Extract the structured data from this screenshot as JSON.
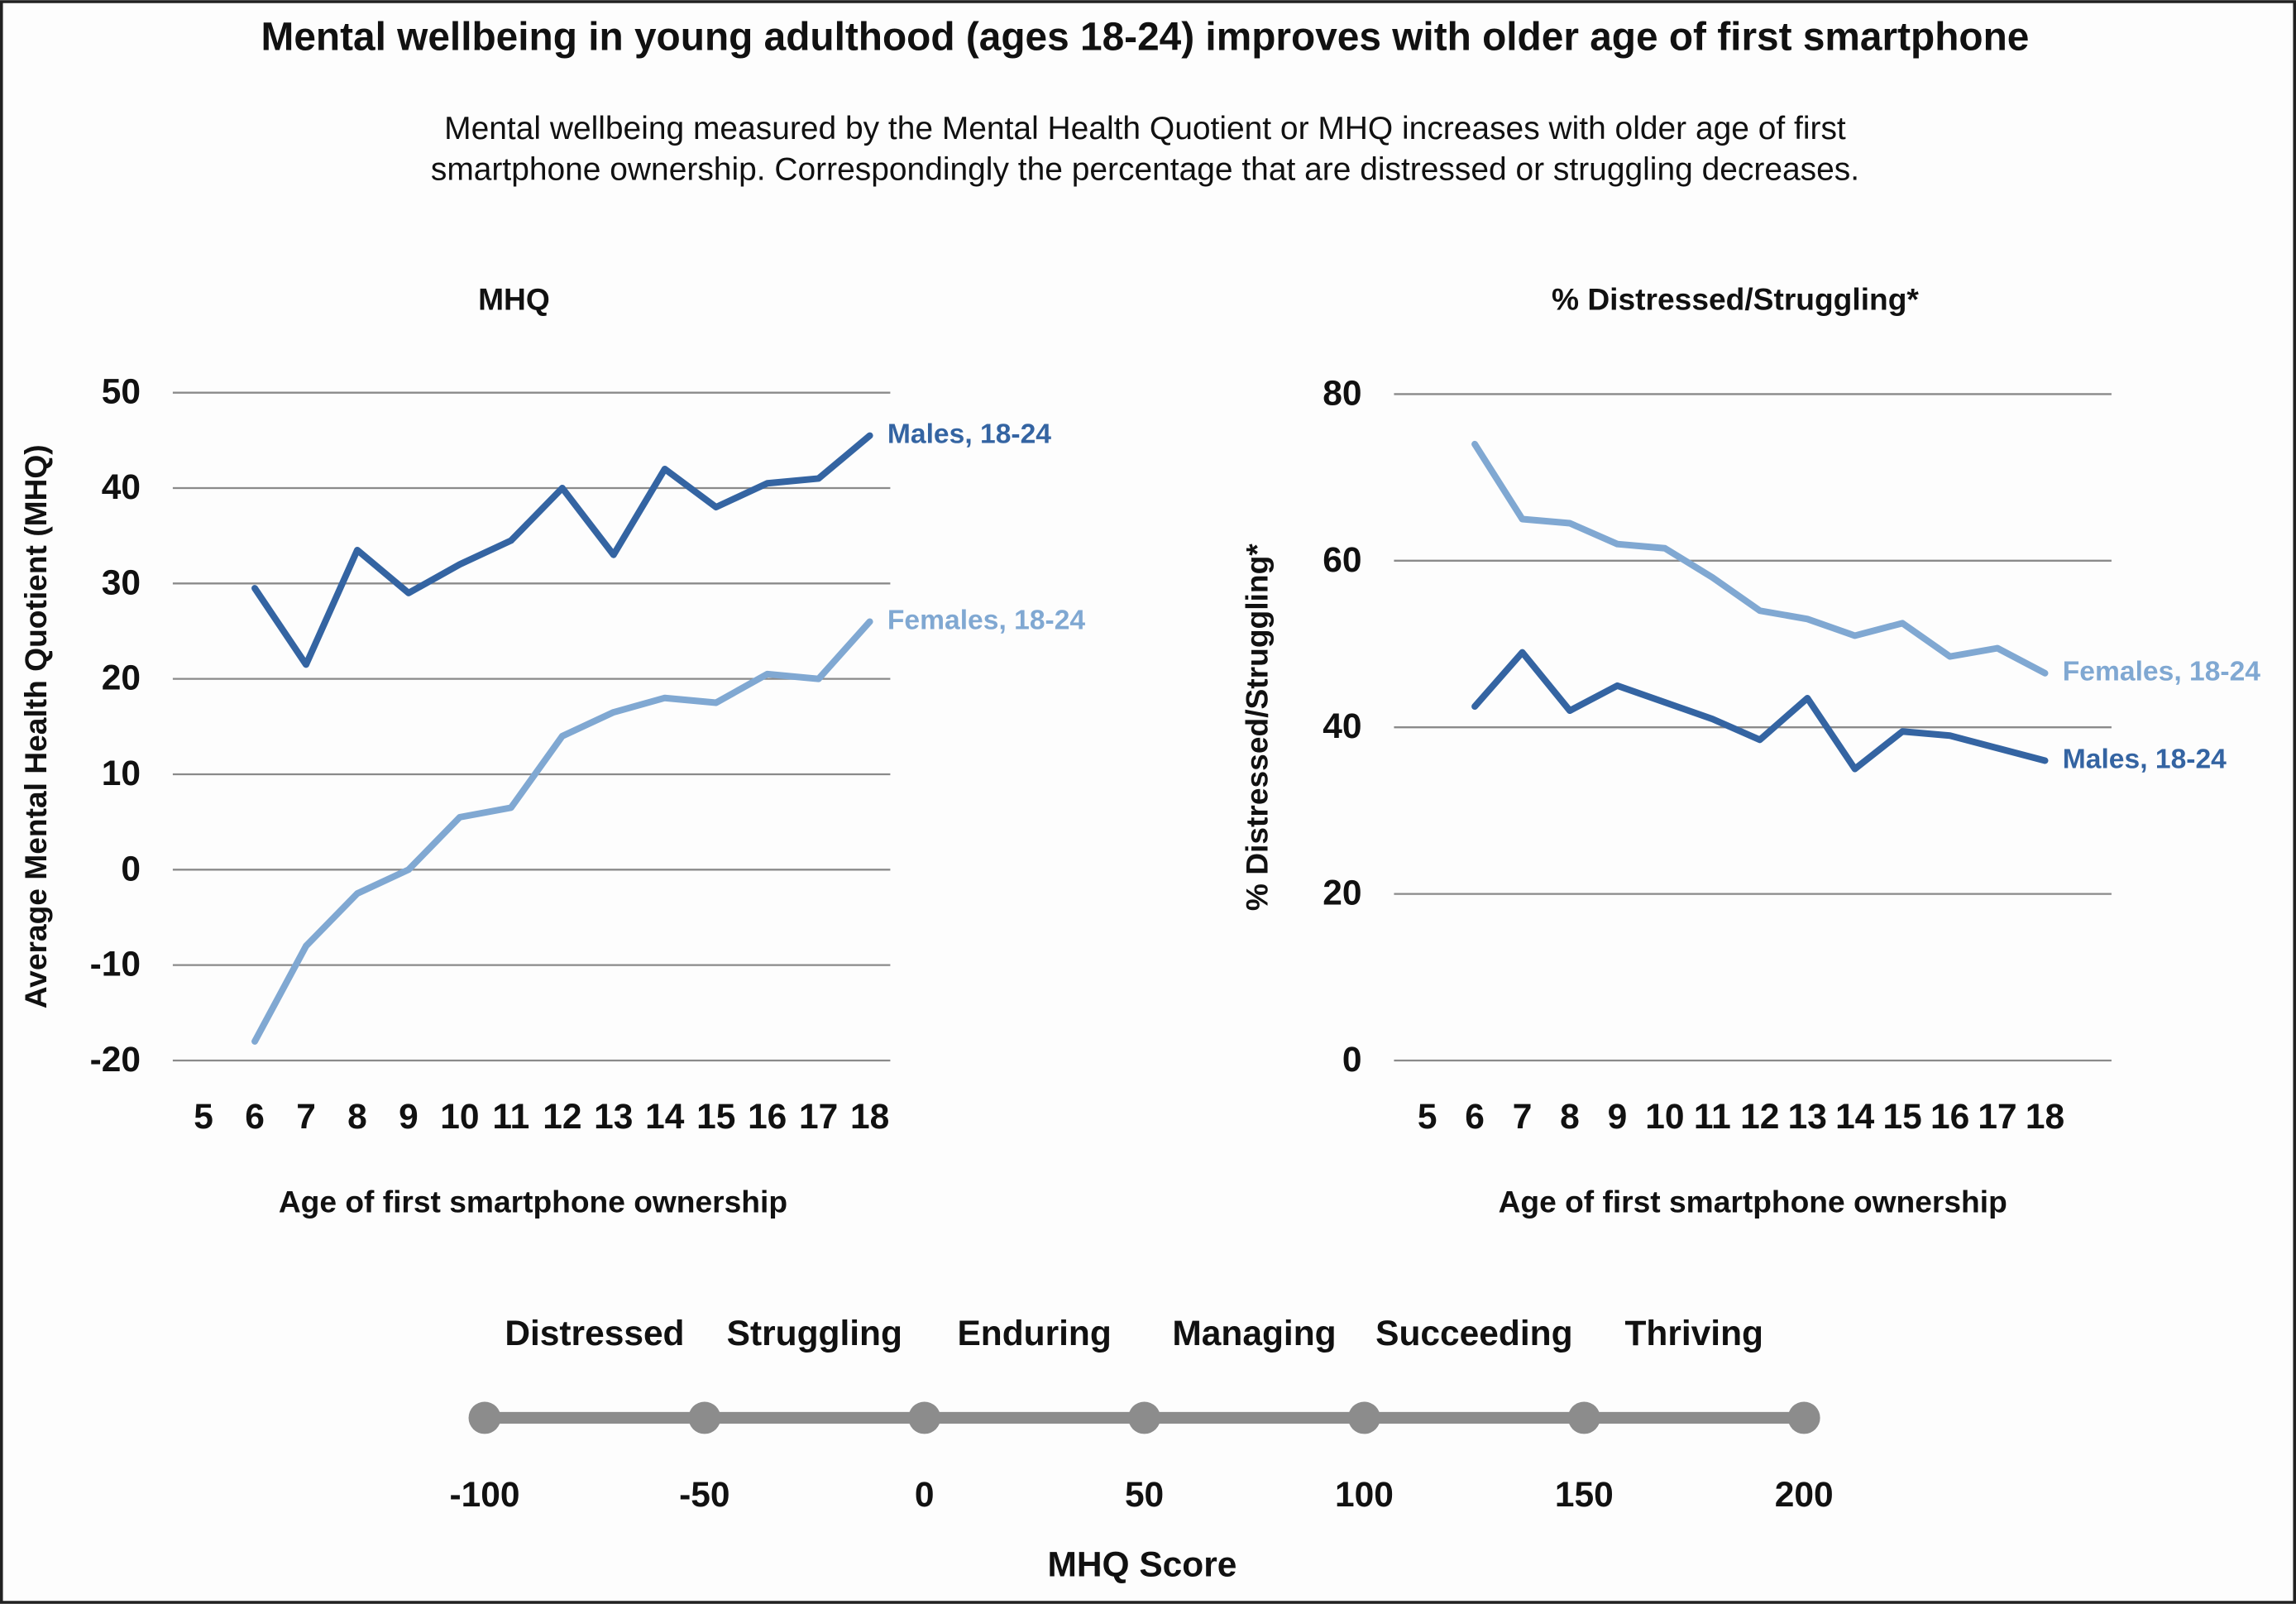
{
  "header": {
    "title": "Mental wellbeing in young adulthood (ages 18-24) improves with older age of first smartphone",
    "subtitle": [
      "Mental wellbeing measured by the Mental Health Quotient or MHQ increases with older age of first",
      "smartphone ownership. Correspondingly the percentage that are distressed or struggling decreases."
    ]
  },
  "chart_data": [
    {
      "type": "line",
      "title": "MHQ",
      "x_label": "Age of first smartphone ownership",
      "y_label": "Average Mental Health Quotient (MHQ)",
      "x": [
        6,
        7,
        8,
        9,
        10,
        11,
        12,
        13,
        14,
        15,
        16,
        17,
        18
      ],
      "xlim": [
        4.4,
        18.4
      ],
      "xticks": [
        5,
        6,
        7,
        8,
        9,
        10,
        11,
        12,
        13,
        14,
        15,
        16,
        17,
        18
      ],
      "ylim": [
        -20,
        50
      ],
      "yticks": [
        -20,
        -10,
        0,
        10,
        20,
        30,
        40,
        50
      ],
      "grid": true,
      "series": [
        {
          "name": "Males, 18-24",
          "color": "#3464a2",
          "values": [
            29.5,
            21.5,
            33.5,
            29,
            32,
            34.5,
            40,
            33,
            42,
            38,
            40.5,
            41,
            45.5
          ]
        },
        {
          "name": "Females, 18-24",
          "color": "#80a8d2",
          "values": [
            -18,
            -8,
            -2.5,
            0,
            5.5,
            6.5,
            14,
            16.5,
            18,
            17.5,
            20.5,
            20,
            26
          ]
        }
      ]
    },
    {
      "type": "line",
      "title": "% Distressed/Struggling*",
      "x_label": "Age of first smartphone ownership",
      "y_label": "% Distressed/Struggling*",
      "x": [
        6,
        7,
        8,
        9,
        10,
        11,
        12,
        13,
        14,
        15,
        16,
        17,
        18
      ],
      "xlim": [
        4.3,
        19.4
      ],
      "xticks": [
        5,
        6,
        7,
        8,
        9,
        10,
        11,
        12,
        13,
        14,
        15,
        16,
        17,
        18
      ],
      "ylim": [
        0,
        80
      ],
      "yticks": [
        0,
        20,
        40,
        60,
        80
      ],
      "grid": true,
      "series": [
        {
          "name": "Females, 18-24",
          "color": "#80a8d2",
          "values": [
            74,
            65,
            64.5,
            62,
            61.5,
            58,
            54,
            53,
            51,
            52.5,
            48.5,
            49.5,
            46.5
          ]
        },
        {
          "name": "Males, 18-24",
          "color": "#3464a2",
          "values": [
            42.5,
            49,
            42,
            45,
            43,
            41,
            38.5,
            43.5,
            35,
            39.5,
            39,
            37.5,
            36
          ]
        }
      ]
    }
  ],
  "scale": {
    "title": "MHQ Score",
    "ticks": [
      -100,
      -50,
      0,
      50,
      100,
      150,
      200
    ],
    "labels": [
      "Distressed",
      "Struggling",
      "Enduring",
      "Managing",
      "Succeeding",
      "Thriving"
    ]
  }
}
